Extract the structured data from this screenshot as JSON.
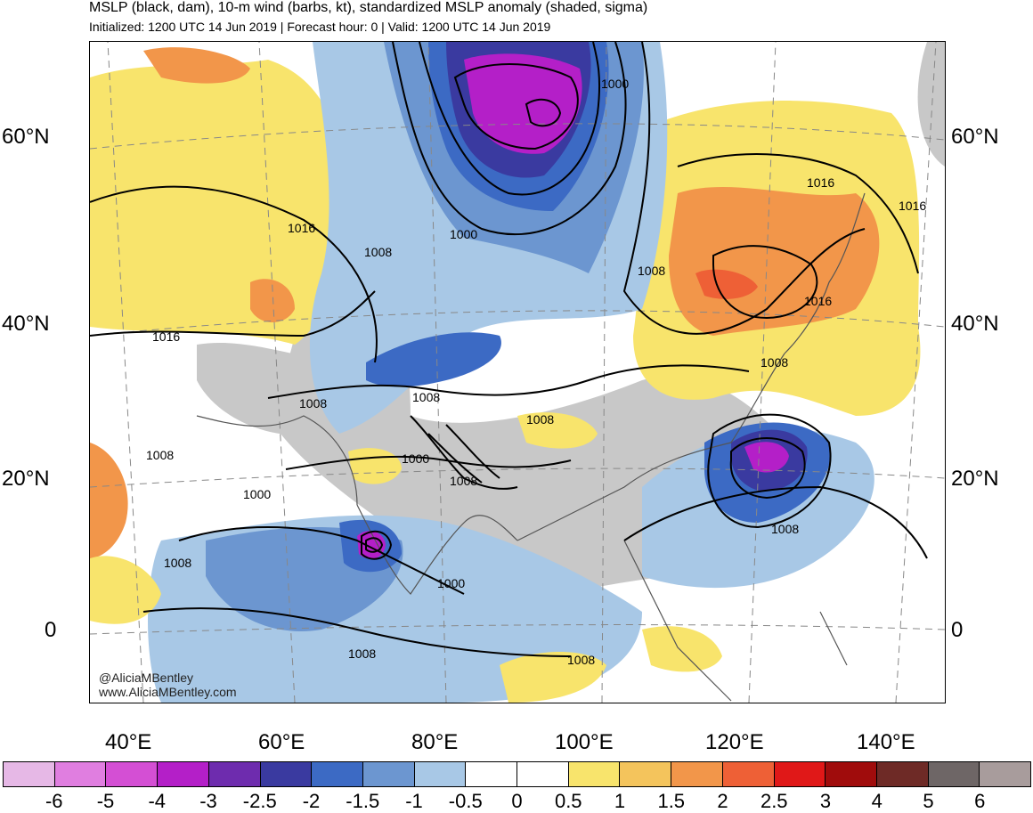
{
  "header": {
    "title": "MSLP (black, dam), 10-m wind (barbs, kt), standardized MSLP anomaly (shaded, sigma)",
    "subtitle": "Initialized: 1200 UTC 14 Jun 2019 | Forecast hour: 0 | Valid: 1200 UTC 14 Jun 2019"
  },
  "map": {
    "lat_labels": [
      "60°N",
      "40°N",
      "20°N",
      "0"
    ],
    "lon_labels": [
      "40°E",
      "60°E",
      "80°E",
      "100°E",
      "120°E",
      "140°E"
    ],
    "contour_labels": [
      "1016",
      "1008",
      "1016",
      "1008",
      "1008",
      "1000",
      "1000",
      "1016",
      "1016",
      "1016",
      "1008",
      "1008",
      "1008",
      "1000",
      "1008",
      "1000",
      "1008",
      "1008",
      "1008",
      "1000",
      "1008",
      "1008"
    ],
    "credit": [
      "@AliciaMBentley",
      "www.AliciaMBentley.com"
    ]
  },
  "colorbar": {
    "labels": [
      "-6",
      "-5",
      "-4",
      "-3",
      "-2.5",
      "-2",
      "-1.5",
      "-1",
      "-0.5",
      "0",
      "0.5",
      "1",
      "1.5",
      "2",
      "2.5",
      "3",
      "4",
      "5",
      "6"
    ],
    "colors": [
      "#e6b8e6",
      "#e07ee0",
      "#d44fd4",
      "#b41fc8",
      "#6e2cae",
      "#3a3aa0",
      "#3c6ac4",
      "#6c96d0",
      "#a8c8e6",
      "#ffffff",
      "#ffffff",
      "#f8e46c",
      "#f4c45c",
      "#f2964a",
      "#ee6036",
      "#e01818",
      "#a00c0c",
      "#6e2a26",
      "#6e6666",
      "#a89c9c"
    ]
  }
}
